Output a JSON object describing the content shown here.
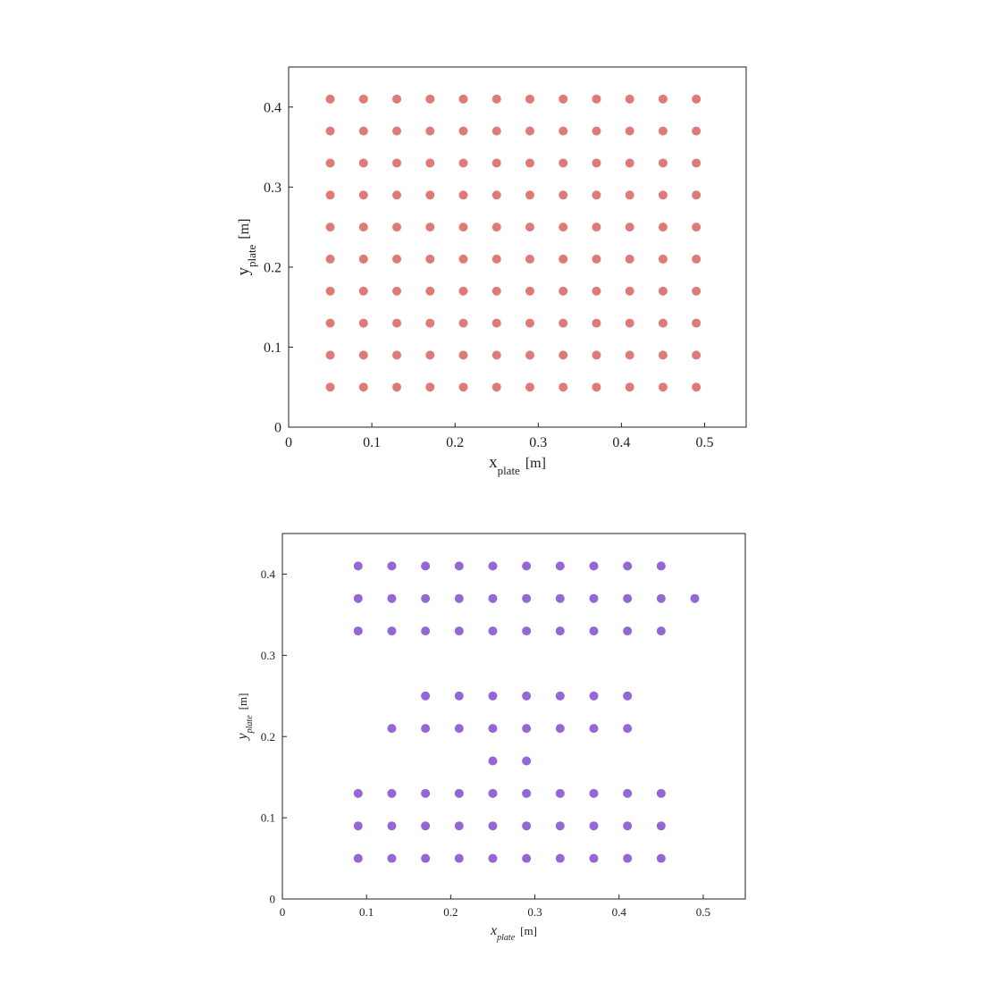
{
  "chart_data": [
    {
      "type": "scatter",
      "color": "#e07a78",
      "marker": "circle",
      "x_label": {
        "symbol": "x",
        "subscript": "plate",
        "unit": "[m]"
      },
      "y_label": {
        "symbol": "y",
        "subscript": "plate",
        "unit": "[m]"
      },
      "xlim": [
        0,
        0.55
      ],
      "ylim": [
        0,
        0.45
      ],
      "xticks": [
        0,
        0.1,
        0.2,
        0.3,
        0.4,
        0.5
      ],
      "yticks": [
        0,
        0.1,
        0.2,
        0.3,
        0.4
      ],
      "x": [
        0.05,
        0.09,
        0.13,
        0.17,
        0.21,
        0.25,
        0.29,
        0.33,
        0.37,
        0.41,
        0.45,
        0.49,
        0.05,
        0.09,
        0.13,
        0.17,
        0.21,
        0.25,
        0.29,
        0.33,
        0.37,
        0.41,
        0.45,
        0.49,
        0.05,
        0.09,
        0.13,
        0.17,
        0.21,
        0.25,
        0.29,
        0.33,
        0.37,
        0.41,
        0.45,
        0.49,
        0.05,
        0.09,
        0.13,
        0.17,
        0.21,
        0.25,
        0.29,
        0.33,
        0.37,
        0.41,
        0.45,
        0.49,
        0.05,
        0.09,
        0.13,
        0.17,
        0.21,
        0.25,
        0.29,
        0.33,
        0.37,
        0.41,
        0.45,
        0.49,
        0.05,
        0.09,
        0.13,
        0.17,
        0.21,
        0.25,
        0.29,
        0.33,
        0.37,
        0.41,
        0.45,
        0.49,
        0.05,
        0.09,
        0.13,
        0.17,
        0.21,
        0.25,
        0.29,
        0.33,
        0.37,
        0.41,
        0.45,
        0.49,
        0.05,
        0.09,
        0.13,
        0.17,
        0.21,
        0.25,
        0.29,
        0.33,
        0.37,
        0.41,
        0.45,
        0.49,
        0.05,
        0.09,
        0.13,
        0.17,
        0.21,
        0.25,
        0.29,
        0.33,
        0.37,
        0.41,
        0.45,
        0.49,
        0.05,
        0.09,
        0.13,
        0.17,
        0.21,
        0.25,
        0.29,
        0.33,
        0.37,
        0.41,
        0.45,
        0.49
      ],
      "y": [
        0.05,
        0.05,
        0.05,
        0.05,
        0.05,
        0.05,
        0.05,
        0.05,
        0.05,
        0.05,
        0.05,
        0.05,
        0.09,
        0.09,
        0.09,
        0.09,
        0.09,
        0.09,
        0.09,
        0.09,
        0.09,
        0.09,
        0.09,
        0.09,
        0.13,
        0.13,
        0.13,
        0.13,
        0.13,
        0.13,
        0.13,
        0.13,
        0.13,
        0.13,
        0.13,
        0.13,
        0.17,
        0.17,
        0.17,
        0.17,
        0.17,
        0.17,
        0.17,
        0.17,
        0.17,
        0.17,
        0.17,
        0.17,
        0.21,
        0.21,
        0.21,
        0.21,
        0.21,
        0.21,
        0.21,
        0.21,
        0.21,
        0.21,
        0.21,
        0.21,
        0.25,
        0.25,
        0.25,
        0.25,
        0.25,
        0.25,
        0.25,
        0.25,
        0.25,
        0.25,
        0.25,
        0.25,
        0.29,
        0.29,
        0.29,
        0.29,
        0.29,
        0.29,
        0.29,
        0.29,
        0.29,
        0.29,
        0.29,
        0.29,
        0.33,
        0.33,
        0.33,
        0.33,
        0.33,
        0.33,
        0.33,
        0.33,
        0.33,
        0.33,
        0.33,
        0.33,
        0.37,
        0.37,
        0.37,
        0.37,
        0.37,
        0.37,
        0.37,
        0.37,
        0.37,
        0.37,
        0.37,
        0.37,
        0.41,
        0.41,
        0.41,
        0.41,
        0.41,
        0.41,
        0.41,
        0.41,
        0.41,
        0.41,
        0.41,
        0.41
      ]
    },
    {
      "type": "scatter",
      "color": "#9466d6",
      "marker": "circle",
      "italic_labels": true,
      "x_label": {
        "symbol": "x",
        "subscript": "plate",
        "unit": "[m]"
      },
      "y_label": {
        "symbol": "y",
        "subscript": "plate",
        "unit": "[m]"
      },
      "xlim": [
        0,
        0.55
      ],
      "ylim": [
        0,
        0.45
      ],
      "xticks": [
        0,
        0.1,
        0.2,
        0.3,
        0.4,
        0.5
      ],
      "yticks": [
        0,
        0.1,
        0.2,
        0.3,
        0.4
      ],
      "x": [
        0.09,
        0.13,
        0.17,
        0.21,
        0.25,
        0.29,
        0.33,
        0.37,
        0.41,
        0.45,
        0.09,
        0.13,
        0.17,
        0.21,
        0.25,
        0.29,
        0.33,
        0.37,
        0.41,
        0.45,
        0.09,
        0.13,
        0.17,
        0.21,
        0.25,
        0.29,
        0.33,
        0.37,
        0.41,
        0.45,
        0.25,
        0.29,
        0.13,
        0.17,
        0.21,
        0.25,
        0.29,
        0.33,
        0.37,
        0.41,
        0.17,
        0.21,
        0.25,
        0.29,
        0.33,
        0.37,
        0.41,
        0.09,
        0.13,
        0.17,
        0.21,
        0.25,
        0.29,
        0.33,
        0.37,
        0.41,
        0.45,
        0.09,
        0.13,
        0.17,
        0.21,
        0.25,
        0.29,
        0.33,
        0.37,
        0.41,
        0.45,
        0.49,
        0.09,
        0.13,
        0.17,
        0.21,
        0.25,
        0.29,
        0.33,
        0.37,
        0.41,
        0.45
      ],
      "y": [
        0.05,
        0.05,
        0.05,
        0.05,
        0.05,
        0.05,
        0.05,
        0.05,
        0.05,
        0.05,
        0.09,
        0.09,
        0.09,
        0.09,
        0.09,
        0.09,
        0.09,
        0.09,
        0.09,
        0.09,
        0.13,
        0.13,
        0.13,
        0.13,
        0.13,
        0.13,
        0.13,
        0.13,
        0.13,
        0.13,
        0.17,
        0.17,
        0.21,
        0.21,
        0.21,
        0.21,
        0.21,
        0.21,
        0.21,
        0.21,
        0.25,
        0.25,
        0.25,
        0.25,
        0.25,
        0.25,
        0.25,
        0.33,
        0.33,
        0.33,
        0.33,
        0.33,
        0.33,
        0.33,
        0.33,
        0.33,
        0.33,
        0.37,
        0.37,
        0.37,
        0.37,
        0.37,
        0.37,
        0.37,
        0.37,
        0.37,
        0.37,
        0.37,
        0.41,
        0.41,
        0.41,
        0.41,
        0.41,
        0.41,
        0.41,
        0.41,
        0.41,
        0.41
      ]
    }
  ]
}
